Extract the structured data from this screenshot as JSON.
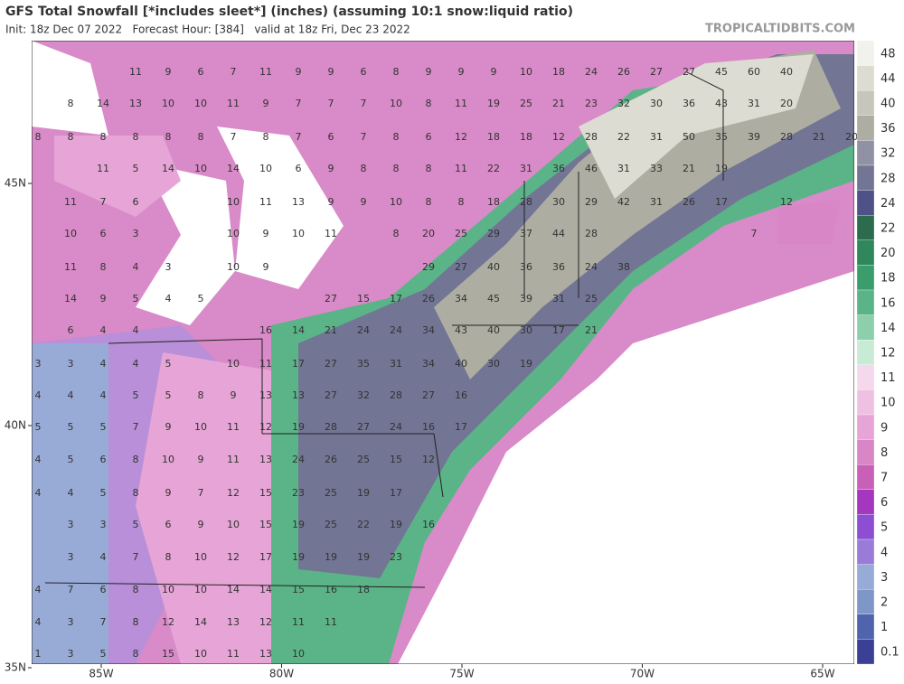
{
  "header": {
    "title": "GFS Total Snowfall [*includes sleet*] (inches) (assuming 10:1 snow:liquid ratio)",
    "subtitle": "Init: 18z Dec 07 2022   Forecast Hour: [384]   valid at 18z Fri, Dec 23 2022",
    "brand": "TROPICALTIDBITS.COM"
  },
  "colorbar": {
    "levels": [
      48,
      44,
      40,
      36,
      32,
      28,
      24,
      22,
      20,
      18,
      16,
      14,
      12,
      11,
      10,
      9,
      8,
      7,
      6,
      5,
      4,
      3,
      2,
      1,
      0.1
    ],
    "colors": [
      "#f2f2ec",
      "#dcdcd2",
      "#c6c6bb",
      "#adada2",
      "#9092a3",
      "#727594",
      "#4e5286",
      "#2c6b4e",
      "#2f875c",
      "#3b9c6c",
      "#5bb487",
      "#8ecfab",
      "#c8ebd6",
      "#f6d8ed",
      "#efc0e2",
      "#e6a5d6",
      "#d986c7",
      "#c760b6",
      "#a536bf",
      "#8d4fd1",
      "#9a7cd8",
      "#98abd6",
      "#7f97c8",
      "#5064ae",
      "#3b4096"
    ]
  },
  "axes": {
    "lon_labels": [
      "85W",
      "80W",
      "75W",
      "70W",
      "65W"
    ],
    "lat_labels": [
      "45N",
      "40N",
      "35N"
    ]
  },
  "stations": {
    "rows": [
      [
        11,
        9,
        6,
        7,
        11,
        9,
        9,
        6,
        8,
        9,
        9,
        9,
        10,
        18,
        24,
        26,
        27,
        27,
        45,
        60,
        40
      ],
      [
        8,
        14,
        13,
        10,
        10,
        11,
        9,
        7,
        7,
        7,
        10,
        8,
        11,
        19,
        25,
        21,
        23,
        32,
        30,
        36,
        43,
        31,
        20
      ],
      [
        8,
        8,
        8,
        8,
        8,
        8,
        7,
        8,
        7,
        6,
        7,
        8,
        6,
        12,
        18,
        18,
        12,
        28,
        22,
        31,
        50,
        35,
        39,
        28,
        21,
        20
      ],
      [
        11,
        5,
        14,
        10,
        14,
        10,
        6,
        9,
        8,
        8,
        8,
        11,
        22,
        31,
        36,
        46,
        31,
        33,
        21,
        19
      ],
      [
        11,
        7,
        6,
        null,
        null,
        10,
        11,
        13,
        9,
        9,
        10,
        8,
        8,
        18,
        28,
        30,
        29,
        42,
        31,
        26,
        17,
        null,
        12
      ],
      [
        10,
        6,
        3,
        null,
        null,
        10,
        9,
        10,
        11,
        null,
        8,
        20,
        25,
        29,
        37,
        44,
        28,
        null,
        null,
        null,
        null,
        7
      ],
      [
        11,
        8,
        4,
        3,
        null,
        10,
        9,
        null,
        null,
        null,
        null,
        29,
        27,
        40,
        36,
        36,
        24,
        38
      ],
      [
        14,
        9,
        5,
        4,
        5,
        null,
        null,
        null,
        27,
        15,
        17,
        26,
        34,
        45,
        39,
        31,
        25
      ],
      [
        6,
        4,
        4,
        null,
        null,
        null,
        16,
        14,
        21,
        24,
        24,
        34,
        43,
        40,
        30,
        17,
        21
      ],
      [
        3,
        3,
        4,
        4,
        5,
        null,
        10,
        11,
        17,
        27,
        35,
        31,
        34,
        40,
        30,
        19
      ],
      [
        4,
        4,
        4,
        5,
        5,
        8,
        9,
        13,
        13,
        27,
        32,
        28,
        27,
        16
      ],
      [
        5,
        5,
        5,
        7,
        9,
        10,
        11,
        12,
        19,
        28,
        27,
        24,
        16,
        17
      ],
      [
        4,
        5,
        6,
        8,
        10,
        9,
        11,
        13,
        24,
        26,
        25,
        15,
        12
      ],
      [
        4,
        4,
        5,
        8,
        9,
        7,
        12,
        15,
        23,
        25,
        19,
        17
      ],
      [
        3,
        3,
        5,
        6,
        9,
        10,
        15,
        19,
        25,
        22,
        19,
        16
      ],
      [
        3,
        4,
        7,
        8,
        10,
        12,
        17,
        19,
        19,
        19,
        23
      ],
      [
        4,
        7,
        6,
        8,
        10,
        10,
        14,
        14,
        15,
        16,
        18
      ],
      [
        4,
        3,
        7,
        8,
        12,
        14,
        13,
        12,
        11,
        11
      ],
      [
        1,
        3,
        5,
        8,
        15,
        10,
        11,
        13,
        10
      ]
    ]
  }
}
